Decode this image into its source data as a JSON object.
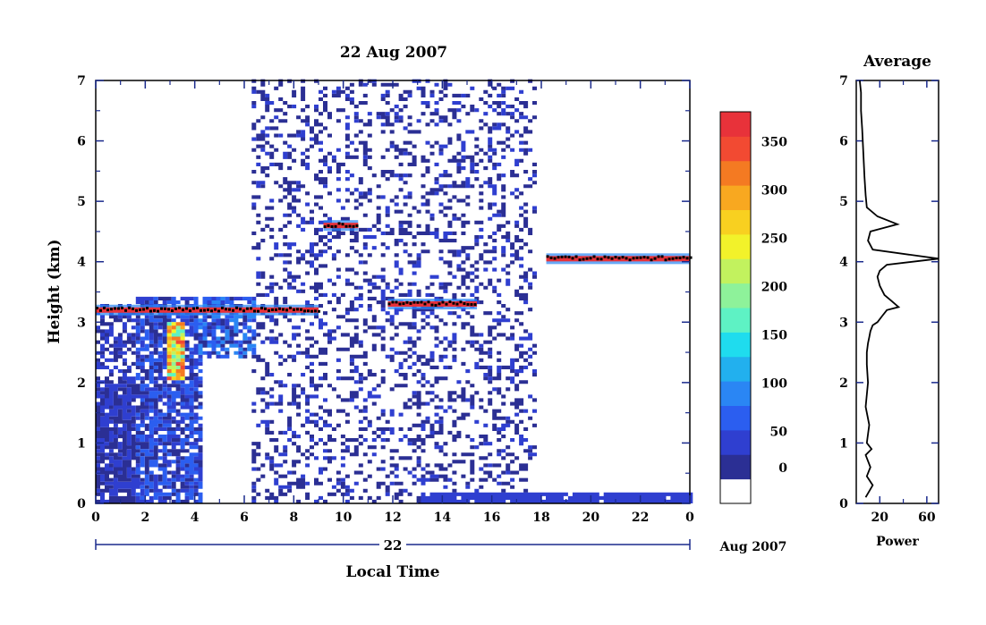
{
  "chart_data": [
    {
      "type": "heatmap",
      "title": "22 Aug 2007",
      "xlabel": "Local Time",
      "ylabel": "Height (km)",
      "xlim": [
        0,
        24
      ],
      "ylim": [
        0,
        7
      ],
      "x_ticks": [
        "0",
        "2",
        "4",
        "6",
        "8",
        "10",
        "12",
        "14",
        "16",
        "18",
        "20",
        "22",
        "0"
      ],
      "y_ticks": [
        "0",
        "1",
        "2",
        "3",
        "4",
        "5",
        "6",
        "7"
      ],
      "date_axis": {
        "day_label": "22",
        "month_label": "Aug 2007"
      },
      "colorbar": {
        "range": [
          0,
          380
        ],
        "ticks": [
          "0",
          "50",
          "100",
          "150",
          "200",
          "250",
          "300",
          "350"
        ],
        "colors": [
          "#2b2f94",
          "#2f3fd0",
          "#2b5ef0",
          "#2a86f4",
          "#22b0ee",
          "#1fdcee",
          "#5ef2c4",
          "#8ef29a",
          "#c2f25e",
          "#f2f22a",
          "#f8d020",
          "#f8a820",
          "#f47a22",
          "#f24a32",
          "#e8323a"
        ]
      },
      "features": [
        {
          "name": "layer-4.6",
          "x": [
            9.2,
            10.6
          ],
          "y": 4.6
        },
        {
          "name": "layer-4.0",
          "x": [
            18.2,
            24
          ],
          "y": 4.05
        },
        {
          "name": "layer-3.3",
          "x": [
            0,
            9
          ],
          "y": 3.2
        },
        {
          "name": "layer-3.25",
          "x": [
            11.8,
            15.4
          ],
          "y": 3.3
        },
        {
          "name": "surface-echo",
          "x": [
            13,
            24
          ],
          "y": 0.1
        }
      ]
    },
    {
      "type": "line",
      "title": "Average",
      "xlabel": "Power",
      "ylabel": "",
      "xlim": [
        0,
        70
      ],
      "ylim": [
        0,
        7
      ],
      "x_ticks": [
        "20",
        "60"
      ],
      "y_ticks": [
        "0",
        "1",
        "2",
        "3",
        "4",
        "5",
        "6",
        "7"
      ],
      "series": [
        {
          "x": [
            8,
            14,
            9,
            12,
            8,
            13,
            9,
            11,
            8,
            10,
            9,
            9,
            10,
            11,
            12,
            14,
            18,
            22,
            26,
            36,
            30,
            24,
            20,
            18,
            20,
            26,
            70,
            14,
            10,
            12,
            35,
            18,
            9,
            8,
            7,
            6,
            5,
            4,
            4,
            3
          ],
          "y": [
            0.1,
            0.3,
            0.45,
            0.6,
            0.8,
            0.9,
            1.0,
            1.3,
            1.6,
            2.0,
            2.3,
            2.5,
            2.65,
            2.75,
            2.85,
            2.95,
            3.0,
            3.1,
            3.2,
            3.25,
            3.35,
            3.45,
            3.6,
            3.75,
            3.85,
            3.95,
            4.05,
            4.2,
            4.35,
            4.5,
            4.62,
            4.75,
            4.9,
            5.1,
            5.4,
            5.8,
            6.2,
            6.5,
            6.8,
            7.0
          ]
        }
      ]
    }
  ]
}
